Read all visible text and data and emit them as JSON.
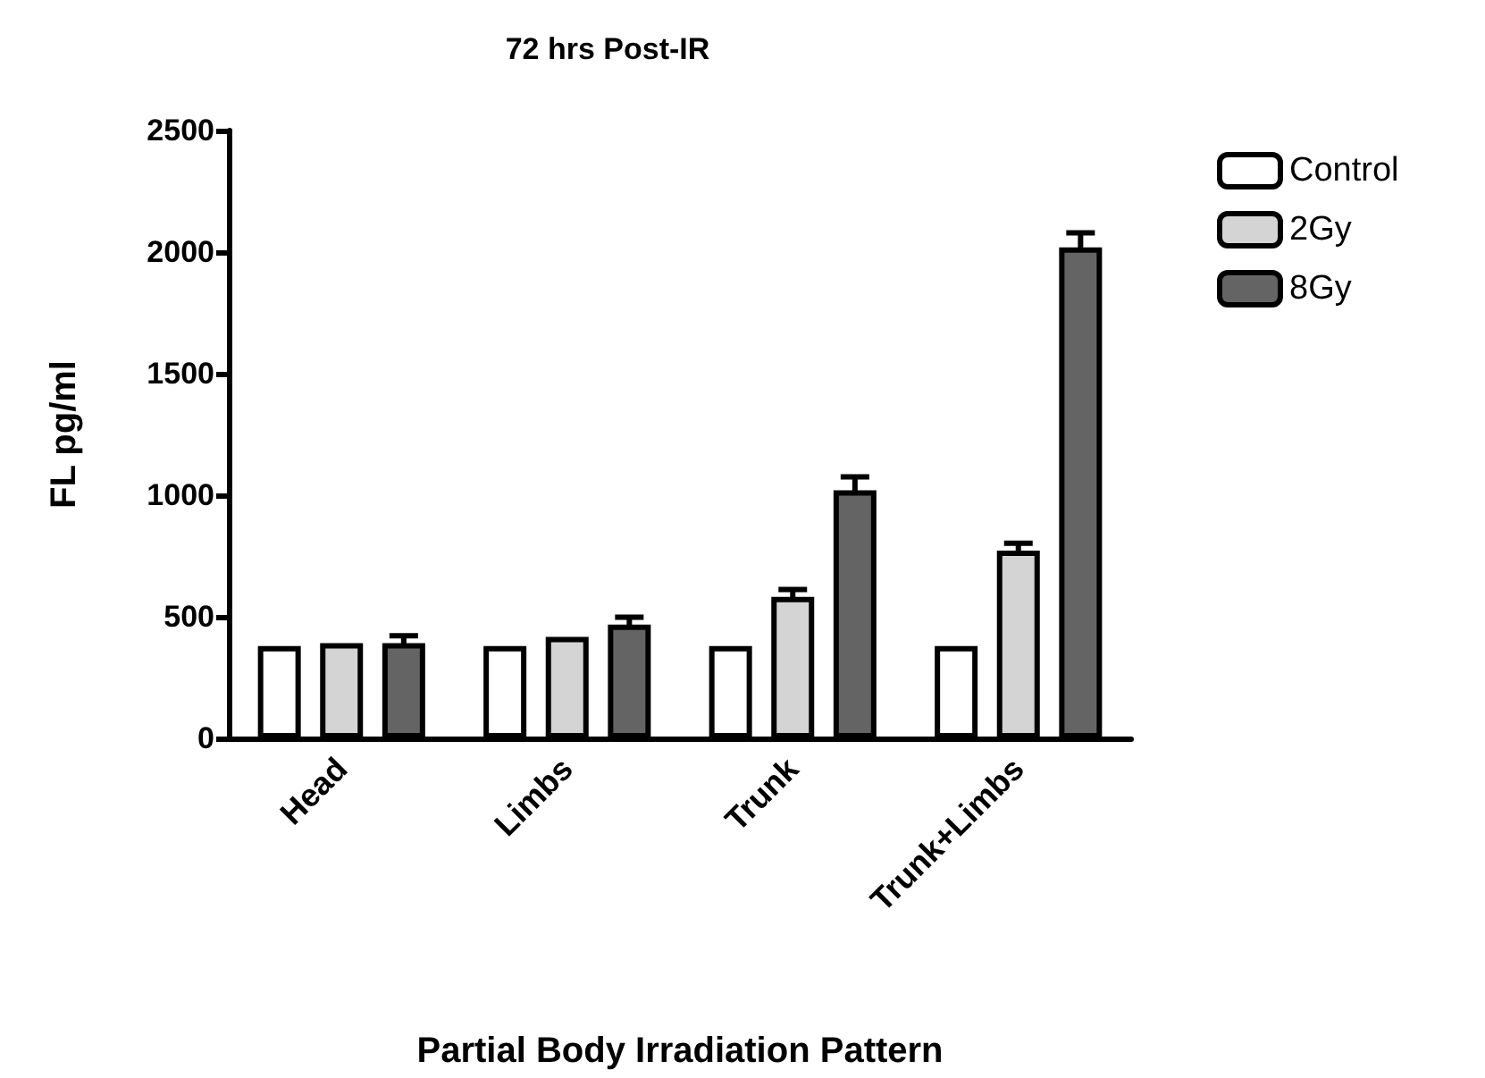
{
  "chart_data": {
    "type": "bar",
    "title": "72 hrs Post-IR",
    "xlabel": "Partial Body Irradiation Pattern",
    "ylabel": "FL pg/ml",
    "categories": [
      "Head",
      "Limbs",
      "Trunk",
      "Trunk+Limbs"
    ],
    "series": [
      {
        "name": "Control",
        "color": "#ffffff",
        "values": [
          380,
          380,
          380,
          380
        ]
      },
      {
        "name": "2Gy",
        "color": "#d4d4d4",
        "values": [
          392,
          417,
          582,
          772
        ],
        "errors": [
          null,
          null,
          30,
          30
        ]
      },
      {
        "name": "8Gy",
        "color": "#646464",
        "values": [
          392,
          468,
          1020,
          2019
        ],
        "errors": [
          30,
          30,
          55,
          60
        ]
      }
    ],
    "ylim": [
      0,
      2500
    ],
    "yticks": [
      0,
      500,
      1000,
      1500,
      2000,
      2500
    ],
    "grid": false,
    "legend": "top right"
  }
}
